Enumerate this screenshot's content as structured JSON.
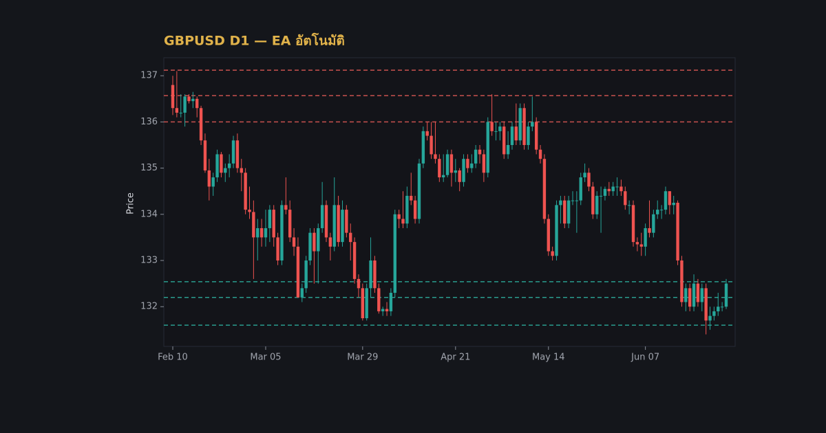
{
  "chart_data": {
    "type": "candlestick",
    "title": "GBPUSD D1 — EA อัตโนมัติ",
    "ylabel": "Price",
    "ylim": [
      131.14,
      137.39
    ],
    "yticks": [
      132,
      133,
      134,
      135,
      136,
      137
    ],
    "up_color": "#26a69a",
    "down_color": "#ef5350",
    "categories": [
      "Feb 10",
      null,
      null,
      null,
      null,
      null,
      null,
      null,
      null,
      null,
      null,
      null,
      null,
      null,
      null,
      null,
      null,
      null,
      null,
      null,
      null,
      null,
      null,
      "Mar 05",
      null,
      null,
      null,
      null,
      null,
      null,
      null,
      null,
      null,
      null,
      null,
      null,
      null,
      null,
      null,
      null,
      null,
      null,
      null,
      null,
      null,
      null,
      null,
      "Mar 29",
      null,
      null,
      null,
      null,
      null,
      null,
      null,
      null,
      null,
      null,
      null,
      null,
      null,
      null,
      null,
      null,
      null,
      null,
      null,
      null,
      null,
      null,
      "Apr 21",
      null,
      null,
      null,
      null,
      null,
      null,
      null,
      null,
      null,
      null,
      null,
      null,
      null,
      null,
      null,
      null,
      null,
      null,
      null,
      null,
      null,
      null,
      "May 14",
      null,
      null,
      null,
      null,
      null,
      null,
      null,
      null,
      null,
      null,
      null,
      null,
      null,
      null,
      null,
      null,
      null,
      null,
      null,
      null,
      null,
      null,
      null,
      "Jun 07",
      null,
      null,
      null,
      null,
      null,
      null,
      null,
      null,
      null,
      null,
      null,
      null,
      null,
      null,
      null,
      null,
      null,
      null,
      null,
      null
    ],
    "candles": [
      [
        136.8,
        137.0,
        136.15,
        136.3
      ],
      [
        136.3,
        137.1,
        136.1,
        136.2
      ],
      [
        136.2,
        136.6,
        136.1,
        136.2
      ],
      [
        136.2,
        136.6,
        135.9,
        136.55
      ],
      [
        136.55,
        136.6,
        136.4,
        136.45
      ],
      [
        136.45,
        136.65,
        136.3,
        136.5
      ],
      [
        136.5,
        136.55,
        136.1,
        136.3
      ],
      [
        136.3,
        136.35,
        135.5,
        135.6
      ],
      [
        135.6,
        135.75,
        134.9,
        134.95
      ],
      [
        134.95,
        135.2,
        134.3,
        134.6
      ],
      [
        134.6,
        134.9,
        134.4,
        134.8
      ],
      [
        134.8,
        135.4,
        134.7,
        135.3
      ],
      [
        135.3,
        135.35,
        134.8,
        134.9
      ],
      [
        134.9,
        135.1,
        134.7,
        135.0
      ],
      [
        135.0,
        135.3,
        134.8,
        135.1
      ],
      [
        135.1,
        135.7,
        135.0,
        135.6
      ],
      [
        135.6,
        135.75,
        134.9,
        135.0
      ],
      [
        135.0,
        135.2,
        134.5,
        134.9
      ],
      [
        134.9,
        135.0,
        134.0,
        134.1
      ],
      [
        134.1,
        134.6,
        133.9,
        134.05
      ],
      [
        134.05,
        134.3,
        132.6,
        133.5
      ],
      [
        133.5,
        133.9,
        133.0,
        133.7
      ],
      [
        133.7,
        133.9,
        133.3,
        133.5
      ],
      [
        133.5,
        134.1,
        133.3,
        133.7
      ],
      [
        133.7,
        134.2,
        133.4,
        134.1
      ],
      [
        134.1,
        134.2,
        133.3,
        133.5
      ],
      [
        133.5,
        133.6,
        132.9,
        133.0
      ],
      [
        133.0,
        134.3,
        132.9,
        134.2
      ],
      [
        134.2,
        134.8,
        134.0,
        134.1
      ],
      [
        134.1,
        134.3,
        133.4,
        133.5
      ],
      [
        133.5,
        133.7,
        133.1,
        133.3
      ],
      [
        133.3,
        133.5,
        132.2,
        132.2
      ],
      [
        132.2,
        132.5,
        132.1,
        132.4
      ],
      [
        132.4,
        133.1,
        132.3,
        133.0
      ],
      [
        133.0,
        133.7,
        132.9,
        133.6
      ],
      [
        133.6,
        133.7,
        132.5,
        133.2
      ],
      [
        133.2,
        133.8,
        132.5,
        133.7
      ],
      [
        133.7,
        134.7,
        133.6,
        134.2
      ],
      [
        134.2,
        134.3,
        133.4,
        133.5
      ],
      [
        133.5,
        133.6,
        133.0,
        133.3
      ],
      [
        133.3,
        134.8,
        133.2,
        134.2
      ],
      [
        134.2,
        134.4,
        133.3,
        133.4
      ],
      [
        133.4,
        134.3,
        133.3,
        134.1
      ],
      [
        134.1,
        134.2,
        133.5,
        133.6
      ],
      [
        133.6,
        133.8,
        133.0,
        133.4
      ],
      [
        133.4,
        133.5,
        132.5,
        132.6
      ],
      [
        132.6,
        132.7,
        132.2,
        132.4
      ],
      [
        132.4,
        132.5,
        131.7,
        131.75
      ],
      [
        131.75,
        132.5,
        131.7,
        132.4
      ],
      [
        132.4,
        133.5,
        132.2,
        133.0
      ],
      [
        133.0,
        133.1,
        132.3,
        132.4
      ],
      [
        132.4,
        132.5,
        131.85,
        131.9
      ],
      [
        131.9,
        132.0,
        131.8,
        131.95
      ],
      [
        131.95,
        132.1,
        131.8,
        131.9
      ],
      [
        131.9,
        132.4,
        131.8,
        132.3
      ],
      [
        132.3,
        134.1,
        132.2,
        134.0
      ],
      [
        134.0,
        134.1,
        133.7,
        133.9
      ],
      [
        133.9,
        134.5,
        133.7,
        133.8
      ],
      [
        133.8,
        134.6,
        133.7,
        134.4
      ],
      [
        134.4,
        134.9,
        134.2,
        134.3
      ],
      [
        134.3,
        134.4,
        133.8,
        133.9
      ],
      [
        133.9,
        135.2,
        133.8,
        135.1
      ],
      [
        135.1,
        135.9,
        135.0,
        135.8
      ],
      [
        135.8,
        136.0,
        135.6,
        135.7
      ],
      [
        135.7,
        136.0,
        135.2,
        135.3
      ],
      [
        135.3,
        136.0,
        135.1,
        135.2
      ],
      [
        135.2,
        135.3,
        134.7,
        134.8
      ],
      [
        134.8,
        135.3,
        134.7,
        134.85
      ],
      [
        134.85,
        135.4,
        134.8,
        135.3
      ],
      [
        135.3,
        135.4,
        134.6,
        134.9
      ],
      [
        134.9,
        135.2,
        134.7,
        134.95
      ],
      [
        134.95,
        135.0,
        134.5,
        134.7
      ],
      [
        134.7,
        135.3,
        134.6,
        135.2
      ],
      [
        135.2,
        135.3,
        134.9,
        135.0
      ],
      [
        135.0,
        135.3,
        134.9,
        135.1
      ],
      [
        135.1,
        135.5,
        135.0,
        135.4
      ],
      [
        135.4,
        135.5,
        135.1,
        135.3
      ],
      [
        135.3,
        135.4,
        134.7,
        134.9
      ],
      [
        134.9,
        136.1,
        134.8,
        136.0
      ],
      [
        136.0,
        136.6,
        135.7,
        135.8
      ],
      [
        135.8,
        136.0,
        135.6,
        135.8
      ],
      [
        135.8,
        136.0,
        135.6,
        135.9
      ],
      [
        135.9,
        136.0,
        135.2,
        135.3
      ],
      [
        135.3,
        135.8,
        135.2,
        135.5
      ],
      [
        135.5,
        136.0,
        135.4,
        135.9
      ],
      [
        135.9,
        136.4,
        135.5,
        135.6
      ],
      [
        135.6,
        136.4,
        135.5,
        136.3
      ],
      [
        136.3,
        136.4,
        135.4,
        135.5
      ],
      [
        135.5,
        136.0,
        135.4,
        135.9
      ],
      [
        135.9,
        136.55,
        135.8,
        136.0
      ],
      [
        136.0,
        136.1,
        135.3,
        135.4
      ],
      [
        135.4,
        135.5,
        135.1,
        135.2
      ],
      [
        135.2,
        135.3,
        133.8,
        133.9
      ],
      [
        133.9,
        134.0,
        133.1,
        133.2
      ],
      [
        133.2,
        133.3,
        133.0,
        133.1
      ],
      [
        133.1,
        134.3,
        133.0,
        134.2
      ],
      [
        134.2,
        134.4,
        133.8,
        134.3
      ],
      [
        134.3,
        134.4,
        133.7,
        133.8
      ],
      [
        133.8,
        134.4,
        133.7,
        134.3
      ],
      [
        134.3,
        134.5,
        134.2,
        134.3
      ],
      [
        134.3,
        134.5,
        133.6,
        134.3
      ],
      [
        134.3,
        134.9,
        134.2,
        134.8
      ],
      [
        134.8,
        135.1,
        134.7,
        134.9
      ],
      [
        134.9,
        135.0,
        134.5,
        134.6
      ],
      [
        134.6,
        134.7,
        133.9,
        134.0
      ],
      [
        134.0,
        134.5,
        133.9,
        134.4
      ],
      [
        134.4,
        134.6,
        133.6,
        134.4
      ],
      [
        134.4,
        134.6,
        134.3,
        134.55
      ],
      [
        134.55,
        134.7,
        134.4,
        134.5
      ],
      [
        134.5,
        134.7,
        134.4,
        134.6
      ],
      [
        134.6,
        134.8,
        134.4,
        134.6
      ],
      [
        134.6,
        134.75,
        134.4,
        134.5
      ],
      [
        134.5,
        134.6,
        134.1,
        134.2
      ],
      [
        134.2,
        134.3,
        134.0,
        134.2
      ],
      [
        134.2,
        134.3,
        133.3,
        133.4
      ],
      [
        133.4,
        133.5,
        133.2,
        133.35
      ],
      [
        133.35,
        133.6,
        133.1,
        133.3
      ],
      [
        133.3,
        133.8,
        133.1,
        133.7
      ],
      [
        133.7,
        134.3,
        133.5,
        133.6
      ],
      [
        133.6,
        134.1,
        133.5,
        134.0
      ],
      [
        134.0,
        134.3,
        133.9,
        134.1
      ],
      [
        134.1,
        134.2,
        133.9,
        134.1
      ],
      [
        134.1,
        134.6,
        134.0,
        134.5
      ],
      [
        134.5,
        134.5,
        134.0,
        134.2
      ],
      [
        134.2,
        134.4,
        134.0,
        134.25
      ],
      [
        134.25,
        134.3,
        132.9,
        133.0
      ],
      [
        133.0,
        133.1,
        132.0,
        132.1
      ],
      [
        132.1,
        132.5,
        131.9,
        132.4
      ],
      [
        132.4,
        132.5,
        131.9,
        132.0
      ],
      [
        132.0,
        132.7,
        131.9,
        132.5
      ],
      [
        132.5,
        132.6,
        132.0,
        132.1
      ],
      [
        132.1,
        132.5,
        131.9,
        132.4
      ],
      [
        132.4,
        132.5,
        131.4,
        131.7
      ],
      [
        131.7,
        132.0,
        131.5,
        131.8
      ],
      [
        131.8,
        132.0,
        131.7,
        131.9
      ],
      [
        131.9,
        132.3,
        131.8,
        132.0
      ],
      [
        132.0,
        132.1,
        131.9,
        132.0
      ],
      [
        132.0,
        132.6,
        131.95,
        132.5
      ]
    ],
    "resistance_levels": [
      137.12,
      136.57,
      136.0
    ],
    "resistance_color": "#c9514f",
    "support_levels": [
      132.54,
      132.2,
      131.6
    ],
    "support_color": "#2a9d8f"
  }
}
